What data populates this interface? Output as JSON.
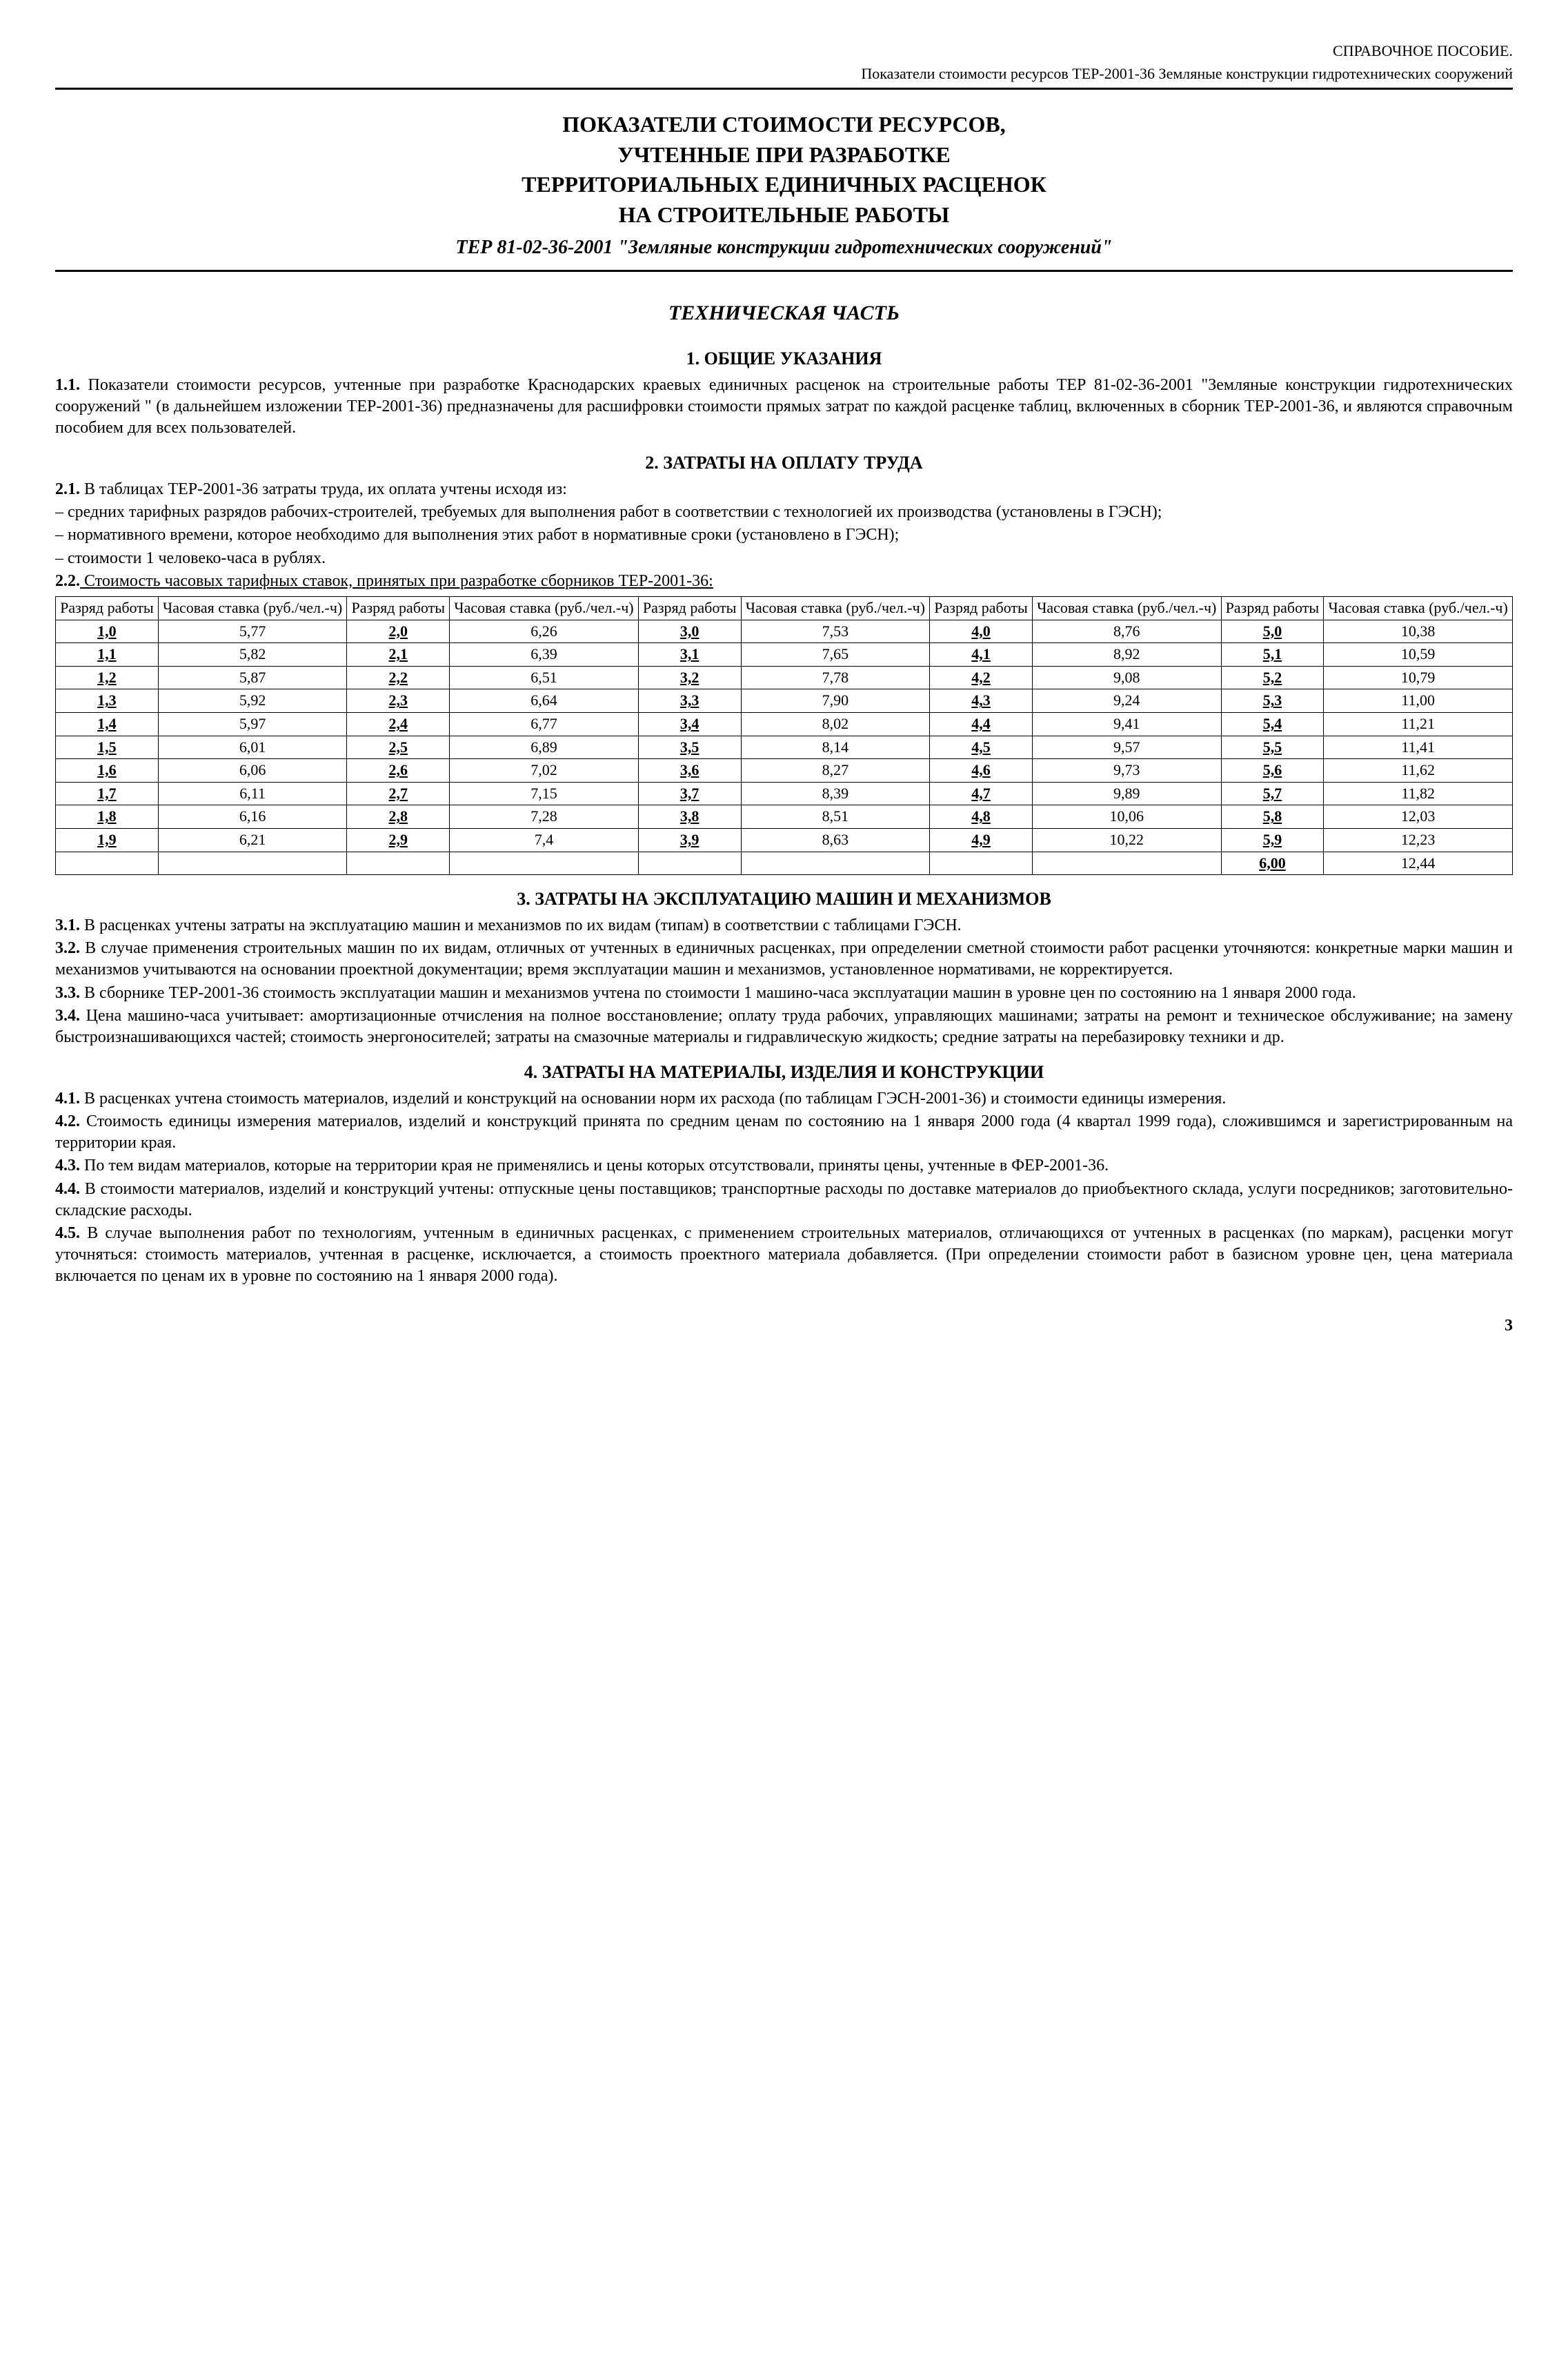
{
  "header": {
    "line1": "СПРАВОЧНОЕ ПОСОБИЕ.",
    "line2": "Показатели стоимости ресурсов ТЕР-2001-36  Земляные конструкции гидротехнических сооружений"
  },
  "title": {
    "l1": "ПОКАЗАТЕЛИ СТОИМОСТИ РЕСУРСОВ,",
    "l2": "УЧТЕННЫЕ ПРИ РАЗРАБОТКЕ",
    "l3": "ТЕРРИТОРИАЛЬНЫХ ЕДИНИЧНЫХ РАСЦЕНОК",
    "l4": "НА СТРОИТЕЛЬНЫЕ РАБОТЫ",
    "sub": "ТЕР 81-02-36-2001  \"Земляные конструкции гидротехнических сооружений\""
  },
  "tech_part": "ТЕХНИЧЕСКАЯ ЧАСТЬ",
  "s1": {
    "h": "1.   ОБЩИЕ УКАЗАНИЯ",
    "p1_num": "1.1.",
    "p1": " Показатели стоимости ресурсов, учтенные при разработке Краснодарских краевых единичных расценок на строительные работы ТЕР 81-02-36-2001 \"Земляные конструкции гидротехнических сооружений \" (в дальнейшем изложении ТЕР-2001-36) предназначены для расшифровки стоимости прямых затрат по каждой расценке таблиц, включенных в сборник ТЕР-2001-36, и являются справочным пособием для всех пользователей."
  },
  "s2": {
    "h": "2.   ЗАТРАТЫ НА ОПЛАТУ ТРУДА",
    "p1_num": "2.1.",
    "p1": " В таблицах ТЕР-2001-36 затраты труда, их оплата учтены исходя из:",
    "b1": "–   средних тарифных разрядов рабочих-строителей, требуемых для выполнения работ в соответствии с технологией их производства (установлены в ГЭСН);",
    "b2": "–   нормативного времени, которое необходимо для выполнения этих работ в нормативные сроки (установлено в ГЭСН);",
    "b3": "–   стоимости 1 человеко-часа в рублях.",
    "p2_num": "2.2.",
    "p2": " Стоимость часовых тарифных ставок, принятых при разработке сборников ТЕР-2001-36:"
  },
  "table": {
    "head": {
      "c1": "Разряд работы",
      "c2": "Часовая ставка (руб./чел.-ч)"
    },
    "rows": [
      [
        "1,0",
        "5,77",
        "2,0",
        "6,26",
        "3,0",
        "7,53",
        "4,0",
        "8,76",
        "5,0",
        "10,38"
      ],
      [
        "1,1",
        "5,82",
        "2,1",
        "6,39",
        "3,1",
        "7,65",
        "4,1",
        "8,92",
        "5,1",
        "10,59"
      ],
      [
        "1,2",
        "5,87",
        "2,2",
        "6,51",
        "3,2",
        "7,78",
        "4,2",
        "9,08",
        "5,2",
        "10,79"
      ],
      [
        "1,3",
        "5,92",
        "2,3",
        "6,64",
        "3,3",
        "7,90",
        "4,3",
        "9,24",
        "5,3",
        "11,00"
      ],
      [
        "1,4",
        "5,97",
        "2,4",
        "6,77",
        "3,4",
        "8,02",
        "4,4",
        "9,41",
        "5,4",
        "11,21"
      ],
      [
        "1,5",
        "6,01",
        "2,5",
        "6,89",
        "3,5",
        "8,14",
        "4,5",
        "9,57",
        "5,5",
        "11,41"
      ],
      [
        "1,6",
        "6,06",
        "2,6",
        "7,02",
        "3,6",
        "8,27",
        "4,6",
        "9,73",
        "5,6",
        "11,62"
      ],
      [
        "1,7",
        "6,11",
        "2,7",
        "7,15",
        "3,7",
        "8,39",
        "4,7",
        "9,89",
        "5,7",
        "11,82"
      ],
      [
        "1,8",
        "6,16",
        "2,8",
        "7,28",
        "3,8",
        "8,51",
        "4,8",
        "10,06",
        "5,8",
        "12,03"
      ],
      [
        "1,9",
        "6,21",
        "2,9",
        "7,4",
        "3,9",
        "8,63",
        "4,9",
        "10,22",
        "5,9",
        "12,23"
      ]
    ],
    "last": [
      "",
      "",
      "",
      "",
      "",
      "",
      "",
      "",
      "6,00",
      "12,44"
    ]
  },
  "s3": {
    "h": "3.   ЗАТРАТЫ НА ЭКСПЛУАТАЦИЮ МАШИН И МЕХАНИЗМОВ",
    "p1_num": "3.1.",
    "p1": " В расценках учтены затраты на эксплуатацию машин и механизмов по их видам (типам) в соответствии с таблицами ГЭСН.",
    "p2_num": "3.2.",
    "p2": " В случае применения строительных машин по их видам, отличных от учтенных в единичных расценках, при определении сметной стоимости работ расценки уточняются: конкретные марки машин и механизмов учитываются на основании проектной документации; время эксплуатации машин и механизмов, установленное нормативами, не корректируется.",
    "p3_num": "3.3.",
    "p3": " В сборнике ТЕР-2001-36 стоимость эксплуатации машин и механизмов учтена по стоимости 1 машино-часа эксплуатации машин в уровне цен по состоянию на 1 января 2000 года.",
    "p4_num": "3.4.",
    "p4": " Цена машино-часа учитывает: амортизационные отчисления на полное восстановление; оплату труда рабочих, управляющих машинами; затраты на ремонт и техническое обслуживание; на замену быстроизнашивающихся частей; стоимость энергоносителей; затраты на смазочные материалы и гидравлическую жидкость; средние затраты на перебазировку техники и др."
  },
  "s4": {
    "h": "4.   ЗАТРАТЫ НА МАТЕРИАЛЫ, ИЗДЕЛИЯ И КОНСТРУКЦИИ",
    "p1_num": "4.1.",
    "p1": " В расценках учтена стоимость материалов, изделий и конструкций на основании норм их расхода (по таблицам ГЭСН-2001-36) и стоимости единицы измерения.",
    "p2_num": "4.2.",
    "p2": " Стоимость единицы измерения материалов, изделий и конструкций принята по средним ценам по состоянию на 1 января 2000 года (4 квартал 1999 года), сложившимся и зарегистрированным на территории края.",
    "p3_num": "4.3.",
    "p3": " По тем видам материалов, которые на территории края не применялись и цены которых отсутствовали, приняты цены, учтенные в ФЕР-2001-36.",
    "p4_num": "4.4.",
    "p4": " В стоимости материалов, изделий и конструкций учтены: отпускные цены поставщиков; транспортные расходы по доставке материалов до приобъектного склада, услуги посредников; заготовительно-складские расходы.",
    "p5_num": "4.5.",
    "p5": " В случае выполнения работ по технологиям, учтенным в единичных расценках, с применением строительных материалов, отличающихся от учтенных в расценках (по маркам), расценки могут уточняться: стоимость материалов, учтенная в расценке, исключается, а стоимость проектного материала добавляется. (При определении стоимости работ в базисном уровне цен, цена материала включается по ценам их в уровне по состоянию на 1 января 2000 года)."
  },
  "page_number": "3"
}
